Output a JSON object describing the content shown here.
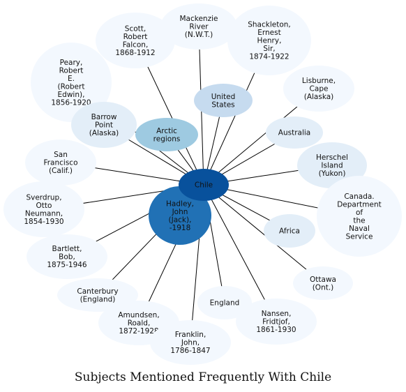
{
  "title": "Subjects Mentioned Frequently With Chile",
  "center": {
    "id": "chile",
    "label": [
      "Chile"
    ],
    "color": "#08519c",
    "text_color": "#ffffff"
  },
  "nodes": [
    {
      "id": "mackenzie-river",
      "label": [
        "Mackenzie",
        "River",
        "(N.W.T.)"
      ],
      "color": "#f3f8fe"
    },
    {
      "id": "scott-robert-falcon",
      "label": [
        "Scott,",
        "Robert",
        "Falcon,",
        "1868-1912"
      ],
      "color": "#f3f8fe"
    },
    {
      "id": "shackleton-ernest-henry",
      "label": [
        "Shackleton,",
        "Ernest",
        "Henry,",
        "Sir,",
        "1874-1922"
      ],
      "color": "#f3f8fe"
    },
    {
      "id": "peary-robert-e",
      "label": [
        "Peary,",
        "Robert",
        "E.",
        "(Robert",
        "Edwin),",
        "1856-1920"
      ],
      "color": "#f3f8fe"
    },
    {
      "id": "lisburne-cape",
      "label": [
        "Lisburne,",
        "Cape",
        "(Alaska)"
      ],
      "color": "#f3f8fe"
    },
    {
      "id": "barrow-point",
      "label": [
        "Barrow",
        "Point",
        "(Alaska)"
      ],
      "color": "#e3eef8"
    },
    {
      "id": "united-states",
      "label": [
        "United",
        "States"
      ],
      "color": "#c6dbef"
    },
    {
      "id": "arctic-regions",
      "label": [
        "Arctic",
        "regions"
      ],
      "color": "#9ecae1"
    },
    {
      "id": "australia",
      "label": [
        "Australia"
      ],
      "color": "#e3eef8"
    },
    {
      "id": "herschel-island",
      "label": [
        "Herschel",
        "Island",
        "(Yukon)"
      ],
      "color": "#e3eef8"
    },
    {
      "id": "san-francisco",
      "label": [
        "San",
        "Francisco",
        "(Calif.)"
      ],
      "color": "#f3f8fe"
    },
    {
      "id": "canada-naval-service",
      "label": [
        "Canada.",
        "Department",
        "of",
        "the",
        "Naval",
        "Service"
      ],
      "color": "#f3f8fe"
    },
    {
      "id": "sverdrup-otto-neumann",
      "label": [
        "Sverdrup,",
        "Otto",
        "Neumann,",
        "1854-1930"
      ],
      "color": "#f3f8fe"
    },
    {
      "id": "hadley-john-jack",
      "label": [
        "Hadley,",
        "John",
        "(Jack),",
        "-1918"
      ],
      "color": "#2171b5",
      "text_color": "#ffffff"
    },
    {
      "id": "africa",
      "label": [
        "Africa"
      ],
      "color": "#e3eef8"
    },
    {
      "id": "bartlett-bob",
      "label": [
        "Bartlett,",
        "Bob,",
        "1875-1946"
      ],
      "color": "#f3f8fe"
    },
    {
      "id": "ottawa-ont",
      "label": [
        "Ottawa",
        "(Ont.)"
      ],
      "color": "#f3f8fe"
    },
    {
      "id": "canterbury-england",
      "label": [
        "Canterbury",
        "(England)"
      ],
      "color": "#f3f8fe"
    },
    {
      "id": "england",
      "label": [
        "England"
      ],
      "color": "#f3f8fe"
    },
    {
      "id": "amundsen-roald",
      "label": [
        "Amundsen,",
        "Roald,",
        "1872-1928"
      ],
      "color": "#f3f8fe"
    },
    {
      "id": "nansen-fridtjof",
      "label": [
        "Nansen,",
        "Fridtjof,",
        "1861-1930"
      ],
      "color": "#f3f8fe"
    },
    {
      "id": "franklin-john",
      "label": [
        "Franklin,",
        "John,",
        "1786-1847"
      ],
      "color": "#f3f8fe"
    }
  ]
}
